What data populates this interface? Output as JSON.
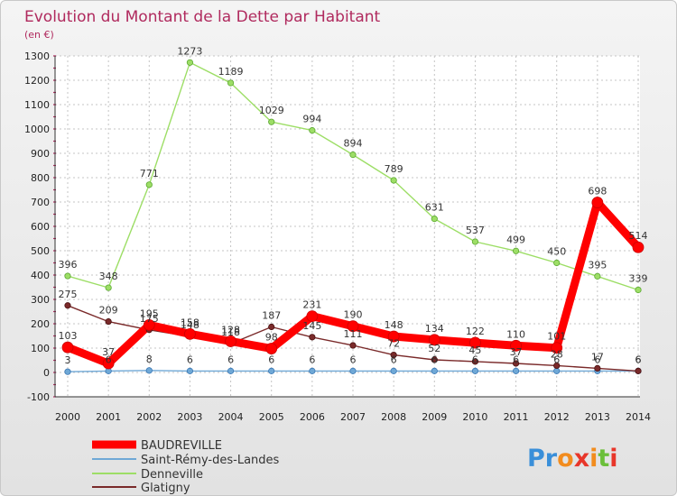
{
  "chart_data": {
    "type": "line",
    "title": "Evolution du Montant de la Dette par Habitant",
    "unit_label": "(en €)",
    "x": [
      "2000",
      "2001",
      "2002",
      "2003",
      "2004",
      "2005",
      "2006",
      "2007",
      "2008",
      "2009",
      "2010",
      "2011",
      "2012",
      "2013",
      "2014"
    ],
    "ylim": [
      -100,
      1300
    ],
    "yticks": [
      -100,
      0,
      100,
      200,
      300,
      400,
      500,
      600,
      700,
      800,
      900,
      1000,
      1100,
      1200,
      1300
    ],
    "grid": true,
    "legend_position": "bottom-left",
    "series": [
      {
        "name": "BAUDREVILLE",
        "color": "#ff0000",
        "values": [
          103,
          37,
          195,
          158,
          128,
          98,
          231,
          190,
          148,
          134,
          122,
          110,
          101,
          698,
          514
        ]
      },
      {
        "name": "Saint-Rémy-des-Landes",
        "color": "#6fa8d6",
        "values": [
          3,
          6,
          8,
          6,
          6,
          6,
          6,
          6,
          6,
          6,
          6,
          6,
          6,
          6,
          6
        ]
      },
      {
        "name": "Denneville",
        "color": "#9dde66",
        "values": [
          396,
          348,
          771,
          1273,
          1189,
          1029,
          994,
          894,
          789,
          631,
          537,
          499,
          450,
          395,
          339
        ]
      },
      {
        "name": "Glatigny",
        "color": "#7a2a2a",
        "values": [
          275,
          209,
          175,
          148,
          118,
          187,
          145,
          111,
          72,
          52,
          45,
          37,
          28,
          17,
          6
        ]
      }
    ]
  },
  "logo": {
    "text": "Proxiti"
  }
}
